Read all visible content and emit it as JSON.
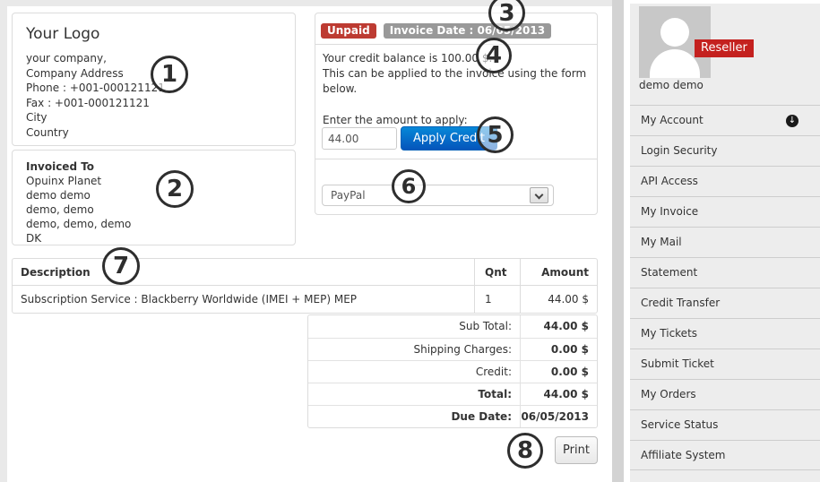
{
  "company": {
    "logo_text": "Your Logo",
    "lines": [
      "your company,",
      "Company Address",
      "Phone : +001-000121121",
      "Fax : +001-000121121",
      "City",
      "Country"
    ]
  },
  "invoiced_to": {
    "heading": "Invoiced To",
    "lines": [
      "Opuinx Planet",
      "demo demo",
      "demo, demo",
      "demo, demo, demo",
      "DK"
    ]
  },
  "payment": {
    "status_badge": "Unpaid",
    "date_badge": "Invoice Date : 06/05/2013",
    "credit_notice": "Your credit balance is 100.00 $.\nThis can be applied to the invoice using the form below.",
    "apply_label": "Enter the amount to apply:",
    "amount_value": "44.00",
    "apply_button": "Apply Credit",
    "gateway_selected": "PayPal"
  },
  "invoice_table": {
    "columns": [
      "Description",
      "Qnt",
      "Amount"
    ],
    "rows": [
      [
        "Subscription Service : Blackberry Worldwide (IMEI + MEP) MEP",
        "1",
        "44.00 $"
      ]
    ],
    "totals": [
      {
        "label": "Sub Total:",
        "value": "44.00 $"
      },
      {
        "label": "Shipping Charges:",
        "value": "0.00 $"
      },
      {
        "label": "Credit:",
        "value": "0.00 $"
      },
      {
        "label": "Total:",
        "value": "44.00 $"
      },
      {
        "label": "Due Date:",
        "value": "06/05/2013"
      }
    ],
    "print_button": "Print"
  },
  "sidebar": {
    "reseller_badge": "Reseller",
    "user_name": "demo demo",
    "my_account_icon": "↓",
    "menu": [
      "My Account",
      "Login Security",
      "API Access",
      "My Invoice",
      "My Mail",
      "Statement",
      "Credit Transfer",
      "My Tickets",
      "Submit Ticket",
      "My Orders",
      "Service Status",
      "Affiliate System"
    ]
  },
  "annotations": [
    "1",
    "2",
    "3",
    "4",
    "5",
    "6",
    "7",
    "8"
  ],
  "colors": {
    "status_unpaid_red": "#bd3b32",
    "date_badge_gray": "#999999",
    "apply_button_blue": "#0561bb",
    "reseller_red": "#c4211f",
    "sidebar_gray": "#ededed"
  }
}
